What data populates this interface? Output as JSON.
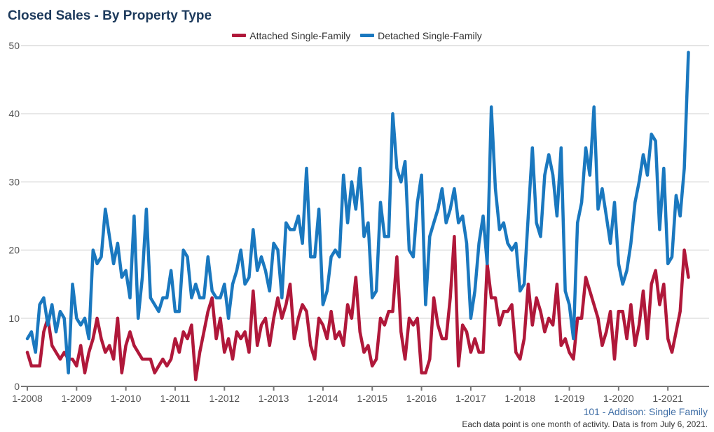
{
  "title": "Closed Sales - By Property Type",
  "footer": {
    "subtitle": "101 - Addison: Single Family",
    "note": "Each data point is one month of activity. Data is from July 6, 2021."
  },
  "chart_data": {
    "type": "line",
    "title": "Closed Sales - By Property Type",
    "x_start": "1-2008",
    "x_end": "6-2021",
    "x_interval": "month",
    "x_tick_labels": [
      "1-2008",
      "1-2009",
      "1-2010",
      "1-2011",
      "1-2012",
      "1-2013",
      "1-2014",
      "1-2015",
      "1-2016",
      "1-2017",
      "1-2018",
      "1-2019",
      "1-2020",
      "1-2021"
    ],
    "ylim": [
      0,
      50
    ],
    "y_ticks": [
      0,
      10,
      20,
      30,
      40,
      50
    ],
    "grid": "horizontal",
    "legend_position": "top-center",
    "series": [
      {
        "name": "Attached Single-Family",
        "color": "#b0183a",
        "values": [
          5,
          3,
          3,
          3,
          8,
          10,
          6,
          5,
          4,
          5,
          4,
          4,
          3,
          6,
          2,
          5,
          7,
          10,
          7,
          5,
          6,
          4,
          10,
          2,
          6,
          8,
          6,
          5,
          4,
          4,
          4,
          2,
          3,
          4,
          3,
          4,
          7,
          5,
          8,
          7,
          9,
          1,
          5,
          8,
          11,
          13,
          7,
          10,
          5,
          7,
          4,
          8,
          7,
          8,
          5,
          14,
          6,
          9,
          10,
          6,
          10,
          13,
          10,
          12,
          15,
          7,
          10,
          12,
          11,
          6,
          4,
          10,
          9,
          7,
          11,
          7,
          8,
          6,
          12,
          10,
          16,
          8,
          5,
          6,
          3,
          4,
          10,
          9,
          11,
          11,
          19,
          8,
          4,
          10,
          9,
          10,
          2,
          2,
          4,
          13,
          9,
          7,
          7,
          13,
          22,
          3,
          9,
          8,
          5,
          7,
          5,
          5,
          18,
          13,
          13,
          9,
          11,
          11,
          12,
          5,
          4,
          7,
          15,
          9,
          13,
          11,
          8,
          10,
          9,
          15,
          6,
          7,
          5,
          4,
          10,
          10,
          16,
          14,
          12,
          10,
          6,
          8,
          11,
          4,
          11,
          11,
          7,
          12,
          6,
          9,
          14,
          7,
          15,
          17,
          12,
          15,
          7,
          5,
          8,
          11,
          20,
          16
        ]
      },
      {
        "name": "Detached Single-Family",
        "color": "#1a78bf",
        "values": [
          7,
          8,
          5,
          12,
          13,
          9,
          12,
          8,
          11,
          10,
          2,
          15,
          10,
          9,
          10,
          7,
          20,
          18,
          19,
          26,
          22,
          18,
          21,
          16,
          17,
          13,
          25,
          10,
          16,
          26,
          13,
          12,
          11,
          13,
          13,
          17,
          11,
          11,
          20,
          19,
          13,
          15,
          13,
          13,
          19,
          14,
          13,
          13,
          15,
          10,
          15,
          17,
          20,
          15,
          16,
          23,
          17,
          19,
          17,
          14,
          21,
          20,
          13,
          24,
          23,
          23,
          25,
          21,
          32,
          19,
          19,
          26,
          12,
          14,
          19,
          20,
          19,
          31,
          24,
          30,
          26,
          32,
          22,
          24,
          13,
          14,
          27,
          22,
          22,
          40,
          32,
          30,
          33,
          20,
          19,
          27,
          31,
          12,
          22,
          24,
          26,
          29,
          24,
          26,
          29,
          24,
          25,
          21,
          10,
          14,
          21,
          25,
          18,
          41,
          29,
          23,
          24,
          21,
          20,
          21,
          14,
          15,
          25,
          35,
          24,
          22,
          31,
          34,
          31,
          25,
          35,
          14,
          12,
          7,
          24,
          27,
          35,
          31,
          41,
          26,
          29,
          25,
          21,
          27,
          18,
          15,
          17,
          21,
          27,
          30,
          34,
          31,
          37,
          36,
          23,
          32,
          18,
          19,
          28,
          25,
          32,
          49
        ]
      }
    ]
  }
}
